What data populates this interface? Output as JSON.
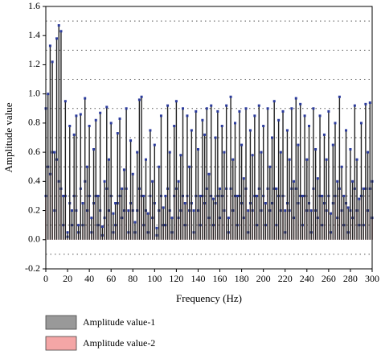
{
  "chart_data": {
    "type": "stem",
    "xlabel": "Frequency (Hz)",
    "ylabel": "Amplitude value",
    "x": [
      0,
      2,
      4,
      6,
      8,
      10,
      12,
      14,
      16,
      18,
      20,
      22,
      24,
      26,
      28,
      30,
      32,
      34,
      36,
      38,
      40,
      42,
      44,
      46,
      48,
      50,
      52,
      54,
      56,
      58,
      60,
      62,
      64,
      66,
      68,
      70,
      72,
      74,
      76,
      78,
      80,
      82,
      84,
      86,
      88,
      90,
      92,
      94,
      96,
      98,
      100,
      102,
      104,
      106,
      108,
      110,
      112,
      114,
      116,
      118,
      120,
      122,
      124,
      126,
      128,
      130,
      132,
      134,
      136,
      138,
      140,
      142,
      144,
      146,
      148,
      150,
      152,
      154,
      156,
      158,
      160,
      162,
      164,
      166,
      168,
      170,
      172,
      174,
      176,
      178,
      180,
      182,
      184,
      186,
      188,
      190,
      192,
      194,
      196,
      198,
      200,
      202,
      204,
      206,
      208,
      210,
      212,
      214,
      216,
      218,
      220,
      222,
      224,
      226,
      228,
      230,
      232,
      234,
      236,
      238,
      240,
      242,
      244,
      246,
      248,
      250,
      252,
      254,
      256,
      258,
      260,
      262,
      264,
      266,
      268,
      270,
      272,
      274,
      276,
      278,
      280,
      282,
      284,
      286,
      288,
      290,
      292,
      294,
      296,
      298,
      300
    ],
    "series": [
      {
        "name": "Amplitude value-2",
        "color": "#f4a6a6",
        "values": [
          0.3,
          0.5,
          0.45,
          0.6,
          0.2,
          0.55,
          0.4,
          0.35,
          0.1,
          0.3,
          0.02,
          0.25,
          0.1,
          0.3,
          0.2,
          0.05,
          0.35,
          0.1,
          0.4,
          0.2,
          0.3,
          0.05,
          0.25,
          0.3,
          0.1,
          0.2,
          0.03,
          0.15,
          0.35,
          0.2,
          0.3,
          0.05,
          0.1,
          0.25,
          0.3,
          0.15,
          0.2,
          0.35,
          0.05,
          0.25,
          0.2,
          0.05,
          0.2,
          0.35,
          0.3,
          0.1,
          0.2,
          0.05,
          0.3,
          0.15,
          0.25,
          0.03,
          0.2,
          0.3,
          0.1,
          0.1,
          0.35,
          0.2,
          0.05,
          0.3,
          0.35,
          0.15,
          0.2,
          0.3,
          0.1,
          0.3,
          0.2,
          0.25,
          0.05,
          0.3,
          0.2,
          0.1,
          0.3,
          0.25,
          0.35,
          0.15,
          0.3,
          0.1,
          0.25,
          0.3,
          0.15,
          0.3,
          0.2,
          0.35,
          0.05,
          0.35,
          0.2,
          0.3,
          0.1,
          0.3,
          0.25,
          0.15,
          0.35,
          0.05,
          0.25,
          0.2,
          0.3,
          0.1,
          0.35,
          0.2,
          0.3,
          0.1,
          0.35,
          0.2,
          0.25,
          0.35,
          0.1,
          0.3,
          0.2,
          0.3,
          0.05,
          0.25,
          0.2,
          0.35,
          0.15,
          0.35,
          0.25,
          0.3,
          0.1,
          0.3,
          0.2,
          0.25,
          0.05,
          0.35,
          0.2,
          0.15,
          0.3,
          0.1,
          0.25,
          0.2,
          0.3,
          0.05,
          0.25,
          0.3,
          0.15,
          0.35,
          0.2,
          0.1,
          0.25,
          0.05,
          0.2,
          0.15,
          0.35,
          0.2,
          0.1,
          0.3,
          0.1,
          0.35,
          0.2,
          0.35,
          0.15
        ]
      },
      {
        "name": "Amplitude value-1",
        "color": "#999999",
        "values": [
          0.9,
          1.0,
          1.33,
          1.22,
          0.6,
          1.38,
          1.47,
          1.43,
          0.3,
          0.95,
          0.05,
          0.78,
          0.2,
          0.72,
          0.85,
          0.1,
          0.86,
          0.25,
          0.97,
          0.5,
          0.78,
          0.15,
          0.62,
          0.82,
          0.3,
          0.87,
          0.09,
          0.4,
          0.91,
          0.55,
          0.8,
          0.18,
          0.25,
          0.73,
          0.83,
          0.35,
          0.48,
          0.9,
          0.2,
          0.68,
          0.45,
          0.12,
          0.6,
          0.96,
          0.98,
          0.3,
          0.55,
          0.18,
          0.75,
          0.4,
          0.65,
          0.08,
          0.5,
          0.85,
          0.22,
          0.3,
          0.92,
          0.6,
          0.15,
          0.78,
          0.95,
          0.4,
          0.58,
          0.9,
          0.25,
          0.85,
          0.5,
          0.75,
          0.2,
          0.88,
          0.62,
          0.3,
          0.82,
          0.72,
          0.9,
          0.45,
          0.92,
          0.28,
          0.7,
          0.88,
          0.35,
          0.78,
          0.6,
          0.92,
          0.15,
          0.98,
          0.55,
          0.8,
          0.3,
          0.88,
          0.65,
          0.42,
          0.9,
          0.2,
          0.75,
          0.58,
          0.85,
          0.3,
          0.92,
          0.6,
          0.78,
          0.25,
          0.9,
          0.5,
          0.7,
          0.95,
          0.35,
          0.82,
          0.6,
          0.88,
          0.2,
          0.75,
          0.55,
          0.9,
          0.4,
          0.97,
          0.65,
          0.93,
          0.3,
          0.85,
          0.55,
          0.78,
          0.2,
          0.9,
          0.62,
          0.42,
          0.85,
          0.3,
          0.72,
          0.55,
          0.88,
          0.18,
          0.65,
          0.8,
          0.4,
          0.98,
          0.5,
          0.3,
          0.75,
          0.22,
          0.62,
          0.4,
          0.92,
          0.55,
          0.28,
          0.8,
          0.35,
          0.93,
          0.6,
          0.94,
          0.4
        ]
      }
    ],
    "marker_color": "#2b3b9c",
    "stem_color": "#222222",
    "xlim": [
      0,
      300
    ],
    "xticks": [
      0,
      20,
      40,
      60,
      80,
      100,
      120,
      140,
      160,
      180,
      200,
      220,
      240,
      260,
      280,
      300
    ],
    "ylim": [
      -0.2,
      1.6
    ],
    "yticks": [
      -0.2,
      {
        "value": 0,
        "label": "0.0"
      },
      0.2,
      0.4,
      0.6,
      0.8,
      {
        "value": 1,
        "label": "1.0"
      },
      1.2,
      1.4,
      1.6
    ],
    "minor_grid": [
      -0.1,
      0.1,
      0.3,
      0.5,
      0.7,
      0.9,
      1.1,
      1.3,
      1.5
    ]
  }
}
